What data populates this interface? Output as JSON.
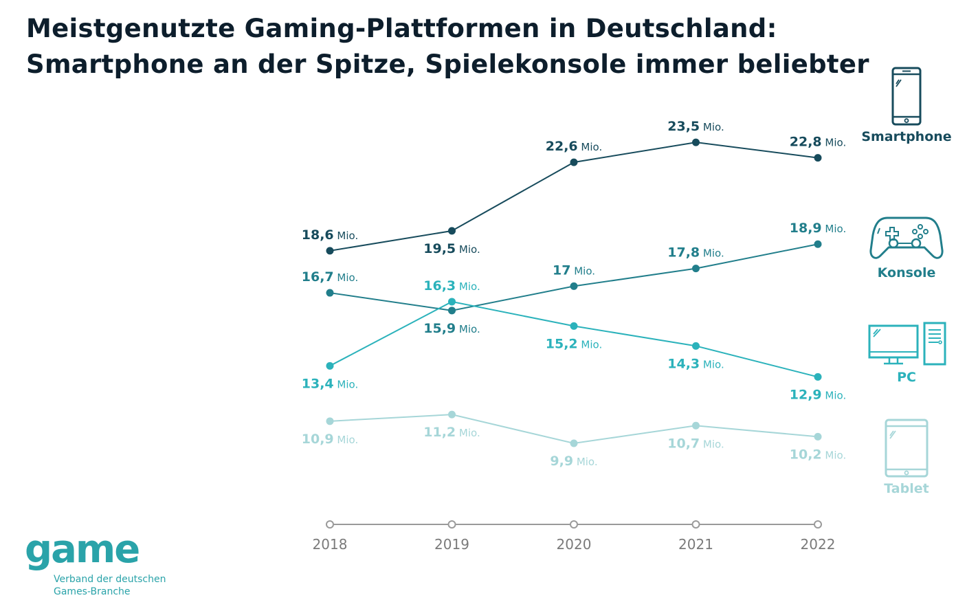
{
  "title": {
    "line1": "Meistgenutzte Gaming-Plattformen in Deutschland:",
    "line2": "Smartphone an der Spitze, Spielekonsole immer beliebter"
  },
  "colors": {
    "smartphone": "#174b5c",
    "konsole": "#217e8b",
    "pc": "#2bb2bb",
    "tablet": "#a6d6d8",
    "axis": "#9a9a9a",
    "axis_text": "#7a7a7a"
  },
  "legend": {
    "smartphone": "Smartphone",
    "konsole": "Konsole",
    "pc": "PC",
    "tablet": "Tablet"
  },
  "unit": "Mio.",
  "logo": {
    "word": "game",
    "tagline_1": "Verband der deutschen",
    "tagline_2": "Games-Branche"
  },
  "chart_data": {
    "type": "line",
    "title": "Meistgenutzte Gaming-Plattformen in Deutschland: Smartphone an der Spitze, Spielekonsole immer beliebter",
    "xlabel": "",
    "ylabel": "",
    "unit": "Mio.",
    "categories": [
      "2018",
      "2019",
      "2020",
      "2021",
      "2022"
    ],
    "ylim": [
      9,
      24
    ],
    "series": [
      {
        "name": "Smartphone",
        "key": "smartphone",
        "values": [
          18.6,
          19.5,
          22.6,
          23.5,
          22.8
        ],
        "labels": [
          "18,6",
          "19,5",
          "22,6",
          "23,5",
          "22,8"
        ]
      },
      {
        "name": "Konsole",
        "key": "konsole",
        "values": [
          16.7,
          15.9,
          17,
          17.8,
          18.9
        ],
        "labels": [
          "16,7",
          "15,9",
          "17",
          "17,8",
          "18,9"
        ]
      },
      {
        "name": "PC",
        "key": "pc",
        "values": [
          13.4,
          16.3,
          15.2,
          14.3,
          12.9
        ],
        "labels": [
          "13,4",
          "16,3",
          "15,2",
          "14,3",
          "12,9"
        ]
      },
      {
        "name": "Tablet",
        "key": "tablet",
        "values": [
          10.9,
          11.2,
          9.9,
          10.7,
          10.2
        ],
        "labels": [
          "10,9",
          "11,2",
          "9,9",
          "10,7",
          "10,2"
        ]
      }
    ]
  }
}
